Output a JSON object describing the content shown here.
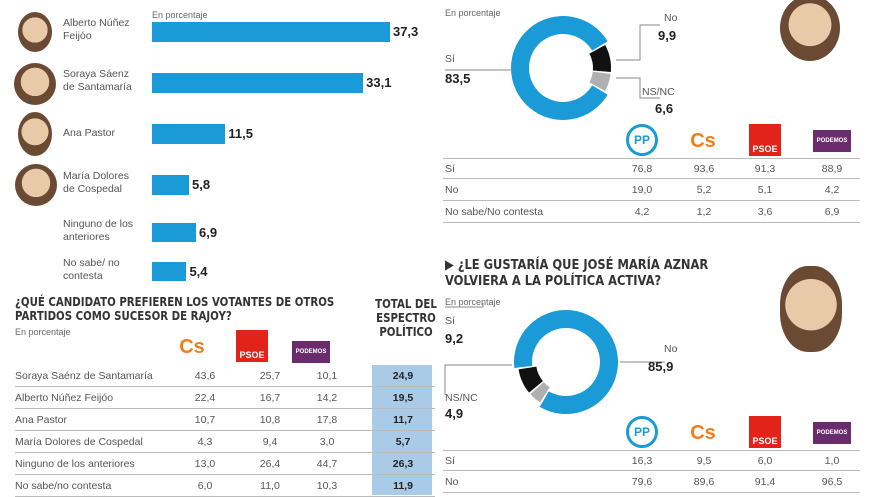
{
  "chart_data": [
    {
      "type": "bar",
      "subtitle": "En porcentaje",
      "categories": [
        "Alberto Núñez Feijóo",
        "Soraya Sáenz de Santamaría",
        "Ana Pastor",
        "María Dolores de Cospedal",
        "Ninguno de los anteriores",
        "No sabe/ no contesta"
      ],
      "values": [
        37.3,
        33.1,
        11.5,
        5.8,
        6.9,
        5.4
      ],
      "labels": [
        "37,3",
        "33,1",
        "11,5",
        "5,8",
        "6,9",
        "5,4"
      ],
      "color": "#1a9ad6"
    },
    {
      "type": "table",
      "title": "¿QUÉ CANDIDATO PREFIEREN LOS VOTANTES DE OTROS PARTIDOS COMO SUCESOR DE RAJOY?",
      "subtitle": "En porcentaje",
      "columns": [
        "Cs",
        "PSOE",
        "Podemos"
      ],
      "total_header": "TOTAL DEL ESPECTRO POLÍTICO",
      "rows": [
        {
          "label": "Soraya Saénz de Santamaría",
          "values": [
            "43,6",
            "25,7",
            "10,1"
          ],
          "total": "24,9"
        },
        {
          "label": "Alberto Núñez Feijóo",
          "values": [
            "22,4",
            "16,7",
            "14,2"
          ],
          "total": "19,5"
        },
        {
          "label": "Ana Pastor",
          "values": [
            "10,7",
            "10,8",
            "17,8"
          ],
          "total": "11,7"
        },
        {
          "label": "María Dolores de Cospedal",
          "values": [
            "4,3",
            "9,4",
            "3,0"
          ],
          "total": "5,7"
        },
        {
          "label": "Ninguno de los anteriores",
          "values": [
            "13,0",
            "26,4",
            "44,7"
          ],
          "total": "26,3"
        },
        {
          "label": "No sabe/no contesta",
          "values": [
            "6,0",
            "11,0",
            "10,3"
          ],
          "total": "11,9"
        }
      ]
    },
    {
      "type": "pie",
      "subtitle": "En porcentaje",
      "slices": [
        {
          "name": "Sí",
          "value": 83.5,
          "label": "83,5",
          "color": "#1a9ad6"
        },
        {
          "name": "No",
          "value": 9.9,
          "label": "9,9",
          "color": "#111111"
        },
        {
          "name": "NS/NC",
          "value": 6.6,
          "label": "6,6",
          "color": "#b0b0b0"
        }
      ],
      "table": {
        "columns": [
          "PP",
          "Cs",
          "PSOE",
          "Podemos"
        ],
        "rows": [
          {
            "label": "Sí",
            "values": [
              "76,8",
              "93,6",
              "91,3",
              "88,9"
            ]
          },
          {
            "label": "No",
            "values": [
              "19,0",
              "5,2",
              "5,1",
              "4,2"
            ]
          },
          {
            "label": "No sabe/No contesta",
            "values": [
              "4,2",
              "1,2",
              "3,6",
              "6,9"
            ]
          }
        ]
      }
    },
    {
      "type": "pie",
      "title": "▶ ¿LE GUSTARÍA QUE JOSÉ MARÍA AZNAR VOLVIERA A LA POLÍTICA ACTIVA?",
      "subtitle": "En porcentaje",
      "slices": [
        {
          "name": "Sí",
          "value": 9.2,
          "label": "9,2",
          "color": "#111111"
        },
        {
          "name": "No",
          "value": 85.9,
          "label": "85,9",
          "color": "#1a9ad6"
        },
        {
          "name": "NS/NC",
          "value": 4.9,
          "label": "4,9",
          "color": "#b0b0b0"
        }
      ],
      "table": {
        "columns": [
          "PP",
          "Cs",
          "PSOE",
          "Podemos"
        ],
        "rows": [
          {
            "label": "Sí",
            "values": [
              "16,3",
              "9,5",
              "6,0",
              "1,0"
            ]
          },
          {
            "label": "No",
            "values": [
              "79,6",
              "89,6",
              "91,4",
              "96,5"
            ]
          }
        ]
      }
    }
  ],
  "logos": {
    "pp": "PP",
    "cs": "Cs",
    "psoe": "PSOE",
    "podemos": "PODEMOS"
  }
}
